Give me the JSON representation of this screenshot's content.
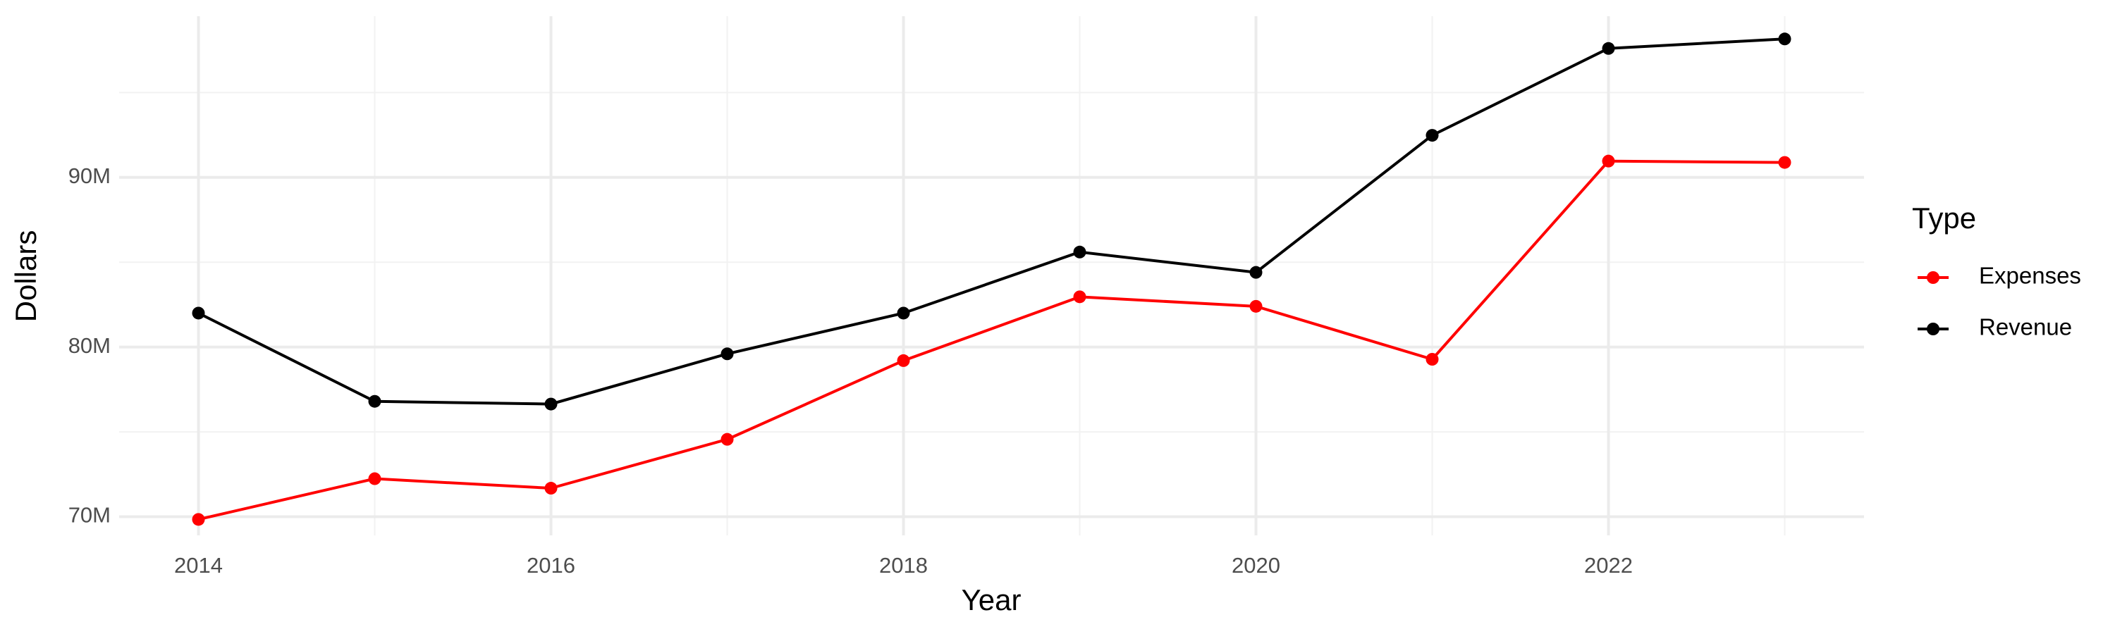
{
  "chart_data": {
    "type": "line",
    "x_label": "Year",
    "y_label": "Dollars",
    "x": [
      2014,
      2015,
      2016,
      2017,
      2018,
      2019,
      2020,
      2021,
      2022,
      2023
    ],
    "series": [
      {
        "name": "Expenses",
        "color": "#ff0000",
        "values": [
          69840000,
          72240000,
          71680000,
          74560000,
          79200000,
          82960000,
          82400000,
          79280000,
          90960000,
          90880000
        ]
      },
      {
        "name": "Revenue",
        "color": "#000000",
        "values": [
          82000000,
          76800000,
          76640000,
          79600000,
          82000000,
          85600000,
          84400000,
          92480000,
          97600000,
          98160000
        ]
      }
    ],
    "xlim": [
      2013.55,
      2023.45
    ],
    "ylim": [
      68900000,
      99500000
    ],
    "xticks": [
      2014,
      2016,
      2018,
      2020,
      2022
    ],
    "yticks": [
      {
        "value": 70000000,
        "label": "70M"
      },
      {
        "value": 80000000,
        "label": "80M"
      },
      {
        "value": 90000000,
        "label": "90M"
      }
    ],
    "x_minor_grid": [
      2015,
      2017,
      2019,
      2021,
      2023
    ],
    "y_minor_grid": [
      75000000,
      85000000,
      95000000
    ],
    "grid": true,
    "legend_title": "Type",
    "legend_position": "right"
  }
}
